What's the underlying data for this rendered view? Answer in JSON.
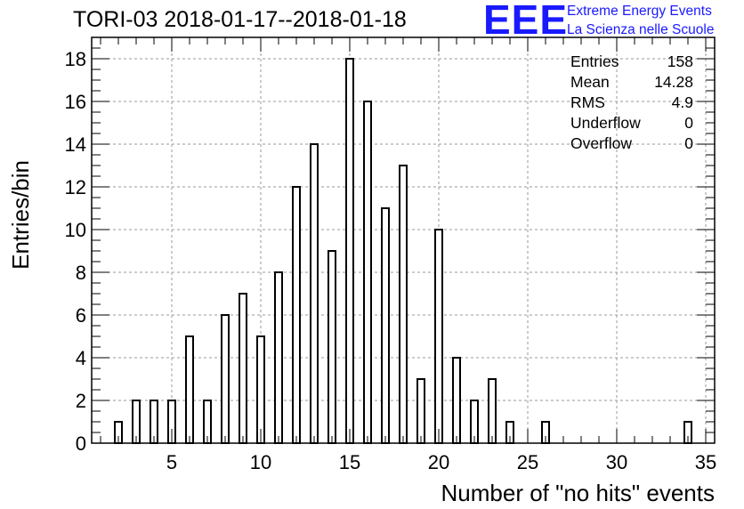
{
  "title": "TORI-03 2018-01-17--2018-01-18",
  "logo": {
    "mark": "EEE",
    "line1": "Extreme Energy Events",
    "line2": "La Scienza nelle Scuole",
    "color": "#1a1aff"
  },
  "stats": [
    {
      "label": "Entries",
      "value": "158"
    },
    {
      "label": "Mean",
      "value": "14.28"
    },
    {
      "label": "RMS",
      "value": "4.9"
    },
    {
      "label": "Underflow",
      "value": "0"
    },
    {
      "label": "Overflow",
      "value": "0"
    }
  ],
  "chart_data": {
    "type": "bar",
    "title": "TORI-03 2018-01-17--2018-01-18",
    "xlabel": "Number of \"no hits\" events",
    "ylabel": "Entries/bin",
    "xlim": [
      0.5,
      35.5
    ],
    "ylim": [
      0,
      19
    ],
    "xticks": [
      5,
      10,
      15,
      20,
      25,
      30,
      35
    ],
    "yticks": [
      0,
      2,
      4,
      6,
      8,
      10,
      12,
      14,
      16,
      18
    ],
    "grid": true,
    "x": [
      2,
      3,
      4,
      5,
      6,
      7,
      8,
      9,
      10,
      11,
      12,
      13,
      14,
      15,
      16,
      17,
      18,
      19,
      20,
      21,
      22,
      23,
      24,
      26,
      34
    ],
    "values": [
      1,
      2,
      2,
      2,
      5,
      2,
      6,
      7,
      5,
      8,
      12,
      14,
      9,
      18,
      16,
      11,
      13,
      3,
      10,
      4,
      2,
      3,
      1,
      1,
      1
    ]
  }
}
